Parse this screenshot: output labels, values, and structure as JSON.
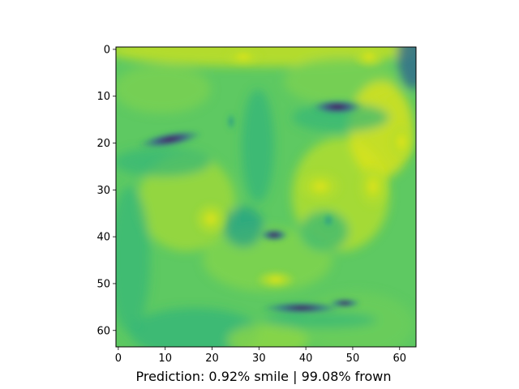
{
  "chart_data": {
    "type": "heatmap",
    "colormap": "viridis",
    "title": "",
    "xlabel": "Prediction: 0.92% smile | 99.08% frown",
    "ylabel": "",
    "image_shape": [
      64,
      64
    ],
    "xlim": [
      -0.5,
      63.5
    ],
    "ylim": [
      63.5,
      -0.5
    ],
    "x_ticks": [
      0,
      10,
      20,
      30,
      40,
      50,
      60
    ],
    "y_ticks": [
      0,
      10,
      20,
      30,
      40,
      50,
      60
    ],
    "x_tick_labels": [
      "0",
      "10",
      "20",
      "30",
      "40",
      "50",
      "60"
    ],
    "y_tick_labels": [
      "0",
      "10",
      "20",
      "30",
      "40",
      "50",
      "60"
    ],
    "prediction": {
      "smile_percent": 0.92,
      "frown_percent": 99.08
    }
  }
}
